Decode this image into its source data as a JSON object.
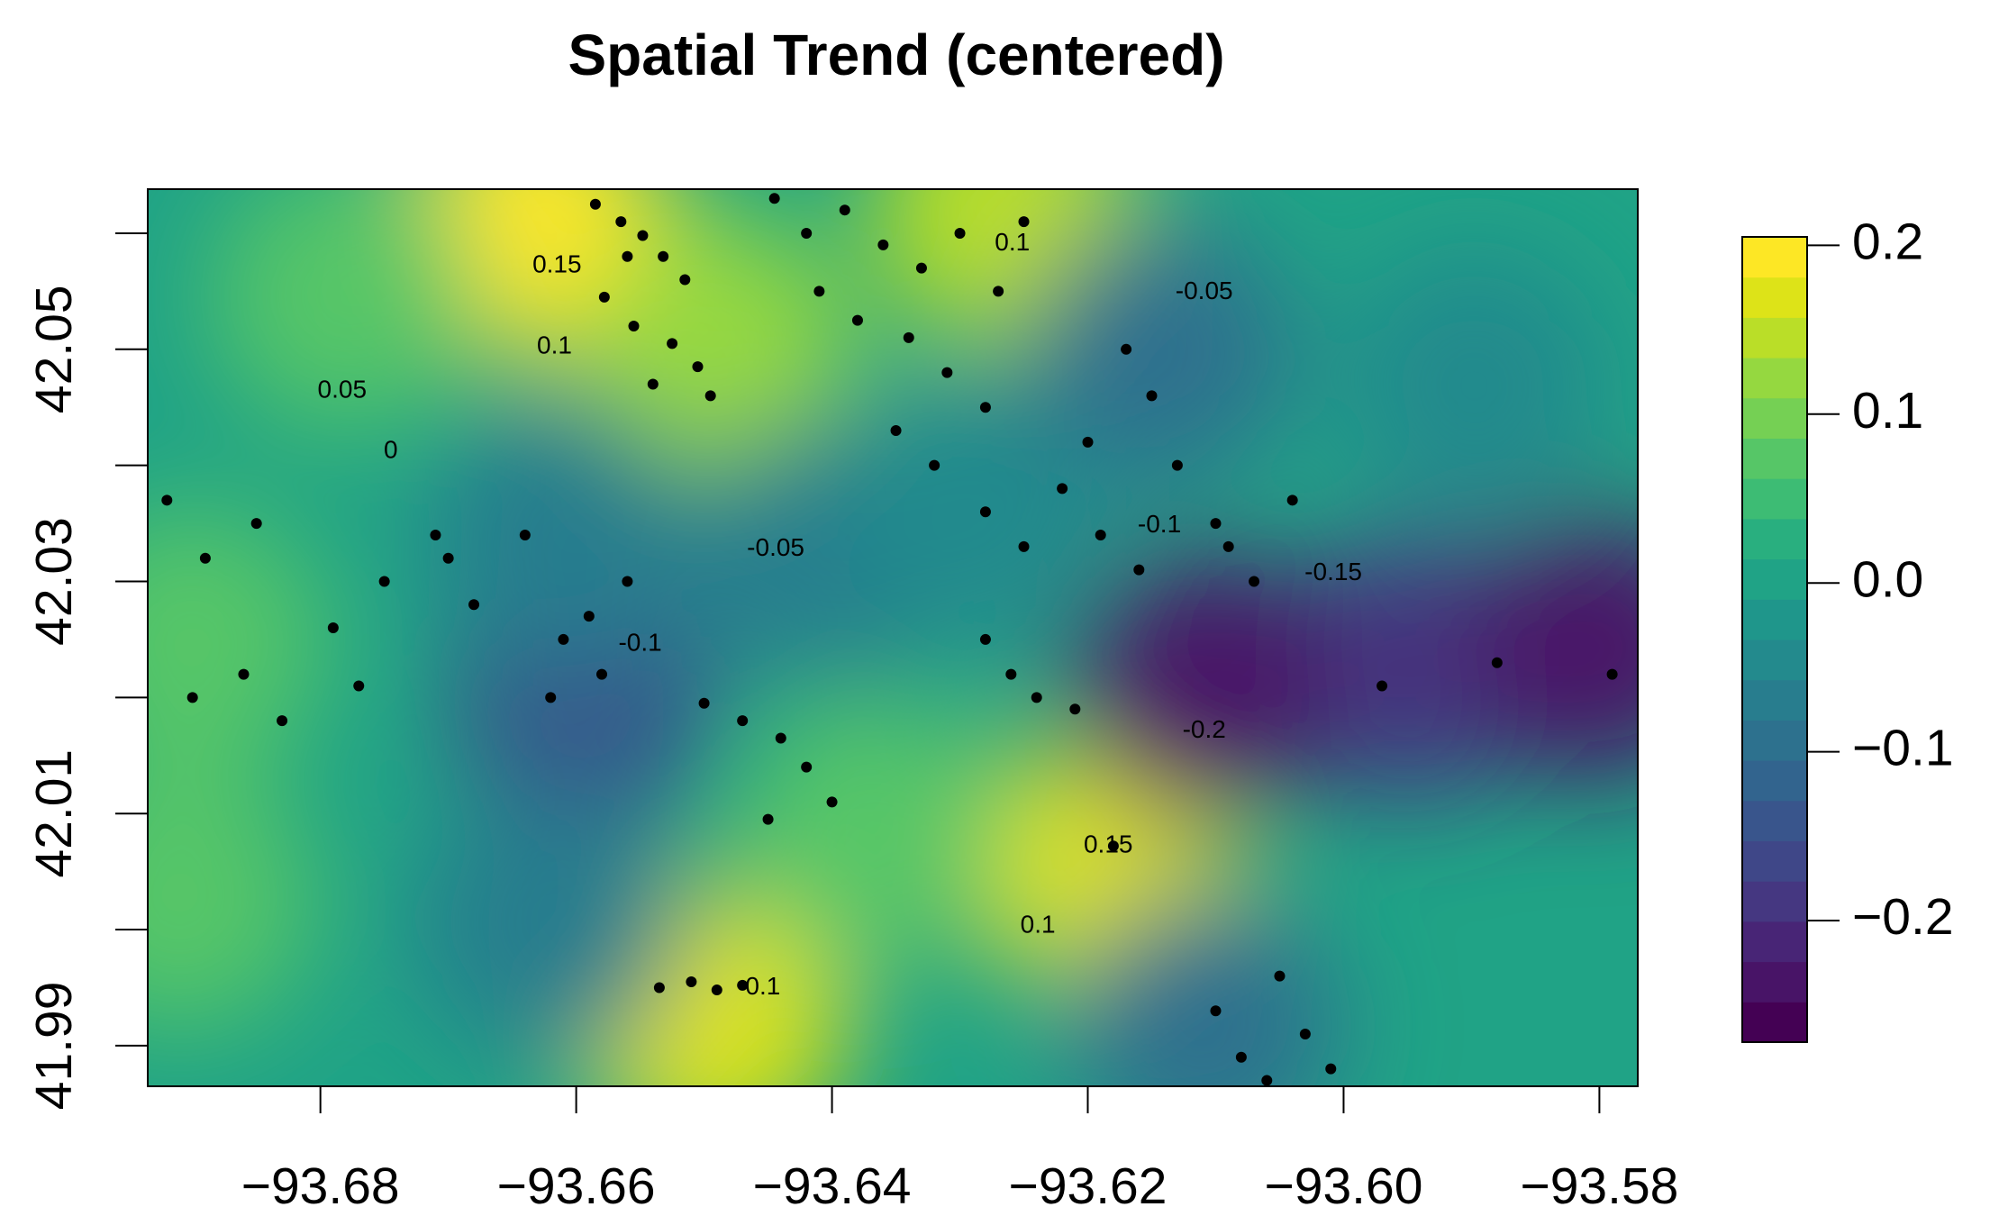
{
  "chart_data": {
    "type": "contour",
    "title": "Spatial Trend (centered)",
    "xlim": [
      -93.6935,
      -93.577
    ],
    "ylim": [
      41.9865,
      42.0638
    ],
    "xticks": [
      {
        "value": -93.68,
        "label": "−93.68"
      },
      {
        "value": -93.66,
        "label": "−93.66"
      },
      {
        "value": -93.64,
        "label": "−93.64"
      },
      {
        "value": -93.62,
        "label": "−93.62"
      },
      {
        "value": -93.6,
        "label": "−93.60"
      },
      {
        "value": -93.58,
        "label": "−93.58"
      }
    ],
    "yticks": [
      41.99,
      {
        "value": 42.0,
        "label": null
      },
      42.01,
      {
        "value": 42.02,
        "label": null
      },
      42.03,
      {
        "value": 42.04,
        "label": null
      },
      42.05,
      {
        "value": 42.06,
        "label": null
      }
    ],
    "colorbar": {
      "lim": [
        -0.272,
        0.205
      ],
      "colors": [
        "#440154",
        "#481467",
        "#482576",
        "#453781",
        "#3f4788",
        "#39558c",
        "#32648e",
        "#2d718e",
        "#287d8e",
        "#238a8d",
        "#1f968b",
        "#20a386",
        "#29af7f",
        "#3dbc74",
        "#56c667",
        "#75d054",
        "#95d840",
        "#bade28",
        "#dde318",
        "#fde725"
      ],
      "ticks": [
        {
          "value": -0.2,
          "label": "−0.2"
        },
        {
          "value": -0.1,
          "label": "−0.1"
        },
        {
          "value": 0,
          "label": "0.0"
        },
        0.1,
        0.2
      ]
    },
    "field": {
      "base": 0,
      "peaks": [
        {
          "x": -93.663,
          "y": 42.0607,
          "value": 0.2
        },
        {
          "x": -93.6264,
          "y": 42.0618,
          "value": 0.15
        },
        {
          "x": -93.6489,
          "y": 42.0502,
          "value": 0.13
        },
        {
          "x": -93.6494,
          "y": 41.9923,
          "value": 0.17
        },
        {
          "x": -93.6184,
          "y": 42.0055,
          "value": 0.17
        },
        {
          "x": -93.69,
          "y": 42.0248,
          "value": 0.08
        },
        {
          "x": -93.691,
          "y": 42.0027,
          "value": 0.08
        },
        {
          "x": -93.678,
          "y": 42.0546,
          "value": 0.08
        },
        {
          "x": -93.6369,
          "y": 42.0083,
          "value": 0.08
        },
        {
          "x": -93.6595,
          "y": 42.0204,
          "value": -0.13
        },
        {
          "x": -93.661,
          "y": 42.0337,
          "value": -0.07
        },
        {
          "x": -93.6399,
          "y": 42.0326,
          "value": -0.06
        },
        {
          "x": -93.6289,
          "y": 42.0359,
          "value": -0.05
        },
        {
          "x": -93.662,
          "y": 42.0005,
          "value": -0.06
        },
        {
          "x": -93.5898,
          "y": 42.0469,
          "value": -0.05
        },
        {
          "x": -93.6144,
          "y": 42.0497,
          "value": -0.1
        },
        {
          "x": -93.6109,
          "y": 41.9917,
          "value": -0.1
        },
        {
          "x": -93.5948,
          "y": 42.0226,
          "value": -0.2
        },
        {
          "x": -93.6109,
          "y": 42.021,
          "value": -0.23
        },
        {
          "x": -93.5803,
          "y": 42.0243,
          "value": -0.24
        }
      ]
    },
    "contour_labels": [
      {
        "x": -93.6615,
        "y": 42.0572,
        "level": 0.15
      },
      {
        "x": -93.6617,
        "y": 42.0502,
        "level": 0.1
      },
      {
        "x": -93.6783,
        "y": 42.0464,
        "level": 0.05
      },
      {
        "x": -93.6745,
        "y": 42.0412,
        "level": 0
      },
      {
        "x": -93.6444,
        "y": 42.0328,
        "level": -0.05
      },
      {
        "x": -93.655,
        "y": 42.0246,
        "level": -0.1
      },
      {
        "x": -93.6109,
        "y": 42.0549,
        "level": -0.05
      },
      {
        "x": -93.6259,
        "y": 42.0591,
        "level": 0.1
      },
      {
        "x": -93.6144,
        "y": 42.0348,
        "level": -0.1
      },
      {
        "x": -93.6008,
        "y": 42.0307,
        "level": -0.15
      },
      {
        "x": -93.6109,
        "y": 42.0171,
        "level": -0.2
      },
      {
        "x": -93.6184,
        "y": 42.0072,
        "level": 0.15
      },
      {
        "x": -93.6239,
        "y": 42.0003,
        "level": 0.1
      },
      {
        "x": -93.6454,
        "y": 41.995,
        "level": 0.1
      }
    ],
    "points": {
      "x": [
        -93.6585,
        -93.6565,
        -93.6548,
        -93.6532,
        -93.6515,
        -93.6578,
        -93.6555,
        -93.6525,
        -93.6505,
        -93.654,
        -93.6495,
        -93.656,
        -93.6445,
        -93.642,
        -93.639,
        -93.636,
        -93.633,
        -93.63,
        -93.627,
        -93.625,
        -93.641,
        -93.638,
        -93.634,
        -93.631,
        -93.628,
        -93.635,
        -93.632,
        -93.628,
        -93.625,
        -93.622,
        -93.619,
        -93.616,
        -93.613,
        -93.61,
        -93.607,
        -93.604,
        -93.62,
        -93.615,
        -93.609,
        -93.617,
        -93.692,
        -93.689,
        -93.686,
        -93.683,
        -93.679,
        -93.675,
        -93.671,
        -93.668,
        -93.664,
        -93.661,
        -93.658,
        -93.656,
        -93.69,
        -93.685,
        -93.677,
        -93.67,
        -93.662,
        -93.659,
        -93.65,
        -93.647,
        -93.644,
        -93.642,
        -93.64,
        -93.645,
        -93.6535,
        -93.651,
        -93.649,
        -93.647,
        -93.61,
        -93.608,
        -93.605,
        -93.603,
        -93.601,
        -93.606,
        -93.628,
        -93.626,
        -93.624,
        -93.621,
        -93.618,
        -93.597,
        -93.579,
        -93.588
      ],
      "y": [
        42.0625,
        42.061,
        42.0598,
        42.058,
        42.056,
        42.0545,
        42.052,
        42.0505,
        42.0485,
        42.047,
        42.046,
        42.058,
        42.063,
        42.06,
        42.062,
        42.059,
        42.057,
        42.06,
        42.055,
        42.061,
        42.055,
        42.0525,
        42.051,
        42.048,
        42.045,
        42.043,
        42.04,
        42.036,
        42.033,
        42.038,
        42.034,
        42.031,
        42.04,
        42.035,
        42.03,
        42.037,
        42.042,
        42.046,
        42.033,
        42.05,
        42.037,
        42.032,
        42.022,
        42.018,
        42.026,
        42.03,
        42.034,
        42.028,
        42.034,
        42.025,
        42.022,
        42.03,
        42.02,
        42.035,
        42.021,
        42.032,
        42.02,
        42.027,
        42.0195,
        42.018,
        42.0165,
        42.014,
        42.011,
        42.0095,
        41.995,
        41.9955,
        41.9948,
        41.9952,
        41.993,
        41.989,
        41.996,
        41.991,
        41.988,
        41.987,
        42.025,
        42.022,
        42.02,
        42.019,
        42.0072,
        42.021,
        42.022,
        42.023
      ]
    }
  }
}
